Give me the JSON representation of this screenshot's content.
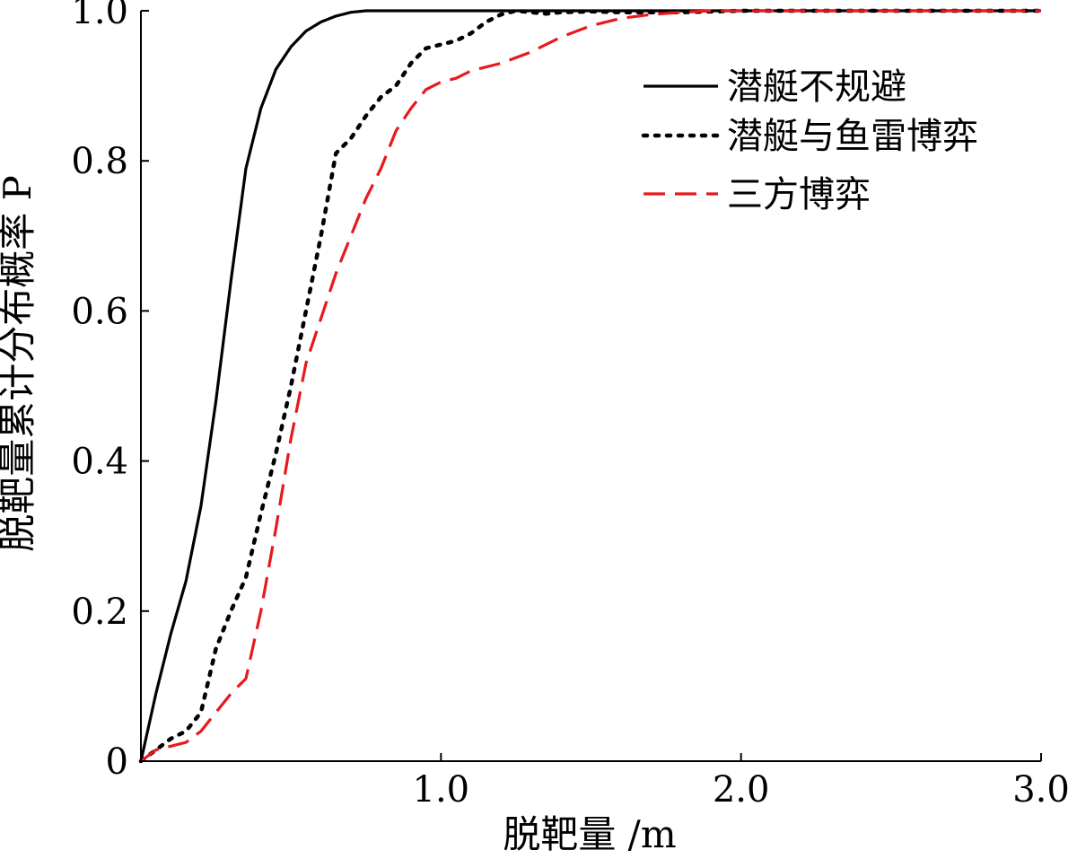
{
  "chart_data": {
    "type": "line",
    "title": "",
    "xlabel": "脱靶量 /m",
    "ylabel": "脱靶量累计分布概率 P",
    "xlim": [
      0,
      3.0
    ],
    "ylim": [
      0,
      1.0
    ],
    "x_ticks": [
      {
        "value": 1.0,
        "label": "1.0"
      },
      {
        "value": 2.0,
        "label": "2.0"
      },
      {
        "value": 3.0,
        "label": "3.0"
      }
    ],
    "y_ticks": [
      {
        "value": 0,
        "label": "0"
      },
      {
        "value": 0.2,
        "label": "0.2"
      },
      {
        "value": 0.4,
        "label": "0.4"
      },
      {
        "value": 0.6,
        "label": "0.6"
      },
      {
        "value": 0.8,
        "label": "0.8"
      },
      {
        "value": 1.0,
        "label": "1.0"
      }
    ],
    "grid": false,
    "legend_position": "top-right",
    "series": [
      {
        "name": "潜艇不规避",
        "color": "#000000",
        "style": "solid",
        "x": [
          0,
          0.05,
          0.1,
          0.15,
          0.2,
          0.25,
          0.3,
          0.35,
          0.4,
          0.45,
          0.5,
          0.55,
          0.6,
          0.65,
          0.7,
          0.75,
          0.8,
          0.82,
          3.0
        ],
        "y": [
          0,
          0.09,
          0.17,
          0.24,
          0.34,
          0.48,
          0.64,
          0.79,
          0.87,
          0.922,
          0.952,
          0.973,
          0.985,
          0.993,
          0.998,
          1.0,
          1.0,
          1.0,
          1.0
        ]
      },
      {
        "name": "潜艇与鱼雷博弈",
        "color": "#000000",
        "style": "dotted",
        "x": [
          0,
          0.05,
          0.1,
          0.15,
          0.2,
          0.25,
          0.3,
          0.35,
          0.4,
          0.45,
          0.5,
          0.55,
          0.6,
          0.65,
          0.7,
          0.75,
          0.8,
          0.85,
          0.9,
          0.95,
          1.0,
          1.05,
          1.1,
          1.15,
          1.2,
          1.25,
          1.3,
          1.35,
          1.4,
          1.5,
          1.6,
          1.7,
          1.8,
          2.0,
          3.0
        ],
        "y": [
          0,
          0.015,
          0.03,
          0.04,
          0.065,
          0.15,
          0.2,
          0.245,
          0.33,
          0.41,
          0.5,
          0.6,
          0.7,
          0.81,
          0.83,
          0.86,
          0.885,
          0.9,
          0.93,
          0.95,
          0.955,
          0.96,
          0.97,
          0.985,
          0.995,
          1.0,
          0.998,
          0.996,
          0.998,
          0.999,
          0.998,
          0.998,
          0.998,
          1.0,
          1.0
        ]
      },
      {
        "name": "三方博弈",
        "color": "#e8191c",
        "style": "dashed",
        "x": [
          0,
          0.05,
          0.1,
          0.15,
          0.2,
          0.25,
          0.3,
          0.35,
          0.4,
          0.45,
          0.5,
          0.55,
          0.6,
          0.65,
          0.7,
          0.75,
          0.8,
          0.85,
          0.9,
          0.95,
          1.0,
          1.05,
          1.1,
          1.2,
          1.3,
          1.4,
          1.5,
          1.6,
          1.7,
          1.8,
          1.9,
          2.0,
          3.0
        ],
        "y": [
          0,
          0.015,
          0.02,
          0.025,
          0.04,
          0.065,
          0.09,
          0.11,
          0.2,
          0.31,
          0.43,
          0.53,
          0.59,
          0.65,
          0.7,
          0.75,
          0.79,
          0.84,
          0.87,
          0.895,
          0.905,
          0.91,
          0.92,
          0.93,
          0.945,
          0.965,
          0.98,
          0.99,
          0.995,
          0.998,
          1.0,
          1.0,
          1.0
        ]
      }
    ]
  }
}
